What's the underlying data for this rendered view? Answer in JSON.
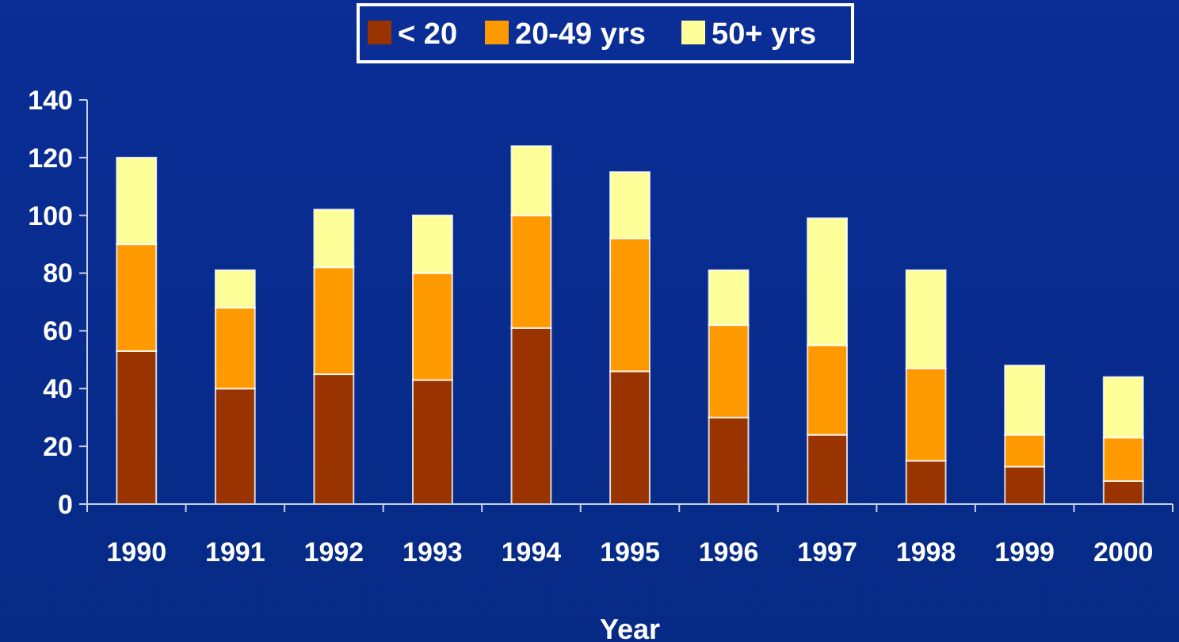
{
  "chart_data": {
    "type": "bar",
    "xlabel": "Year",
    "stacked": true,
    "legend": "top",
    "grid": false,
    "categories": [
      "1990",
      "1991",
      "1992",
      "1993",
      "1994",
      "1995",
      "1996",
      "1997",
      "1998",
      "1999",
      "2000"
    ],
    "ylim": [
      0,
      140
    ],
    "yticks": [
      0,
      20,
      40,
      60,
      80,
      100,
      120,
      140
    ],
    "series": [
      {
        "name": "< 20",
        "color": "#993300",
        "values": [
          53,
          40,
          45,
          43,
          61,
          46,
          30,
          24,
          15,
          13,
          8
        ]
      },
      {
        "name": "20-49 yrs",
        "color": "#ff9900",
        "values": [
          37,
          28,
          37,
          37,
          39,
          46,
          32,
          31,
          32,
          11,
          15
        ]
      },
      {
        "name": "50+ yrs",
        "color": "#ffff99",
        "values": [
          30,
          13,
          20,
          20,
          24,
          23,
          19,
          44,
          34,
          24,
          21
        ]
      }
    ]
  }
}
